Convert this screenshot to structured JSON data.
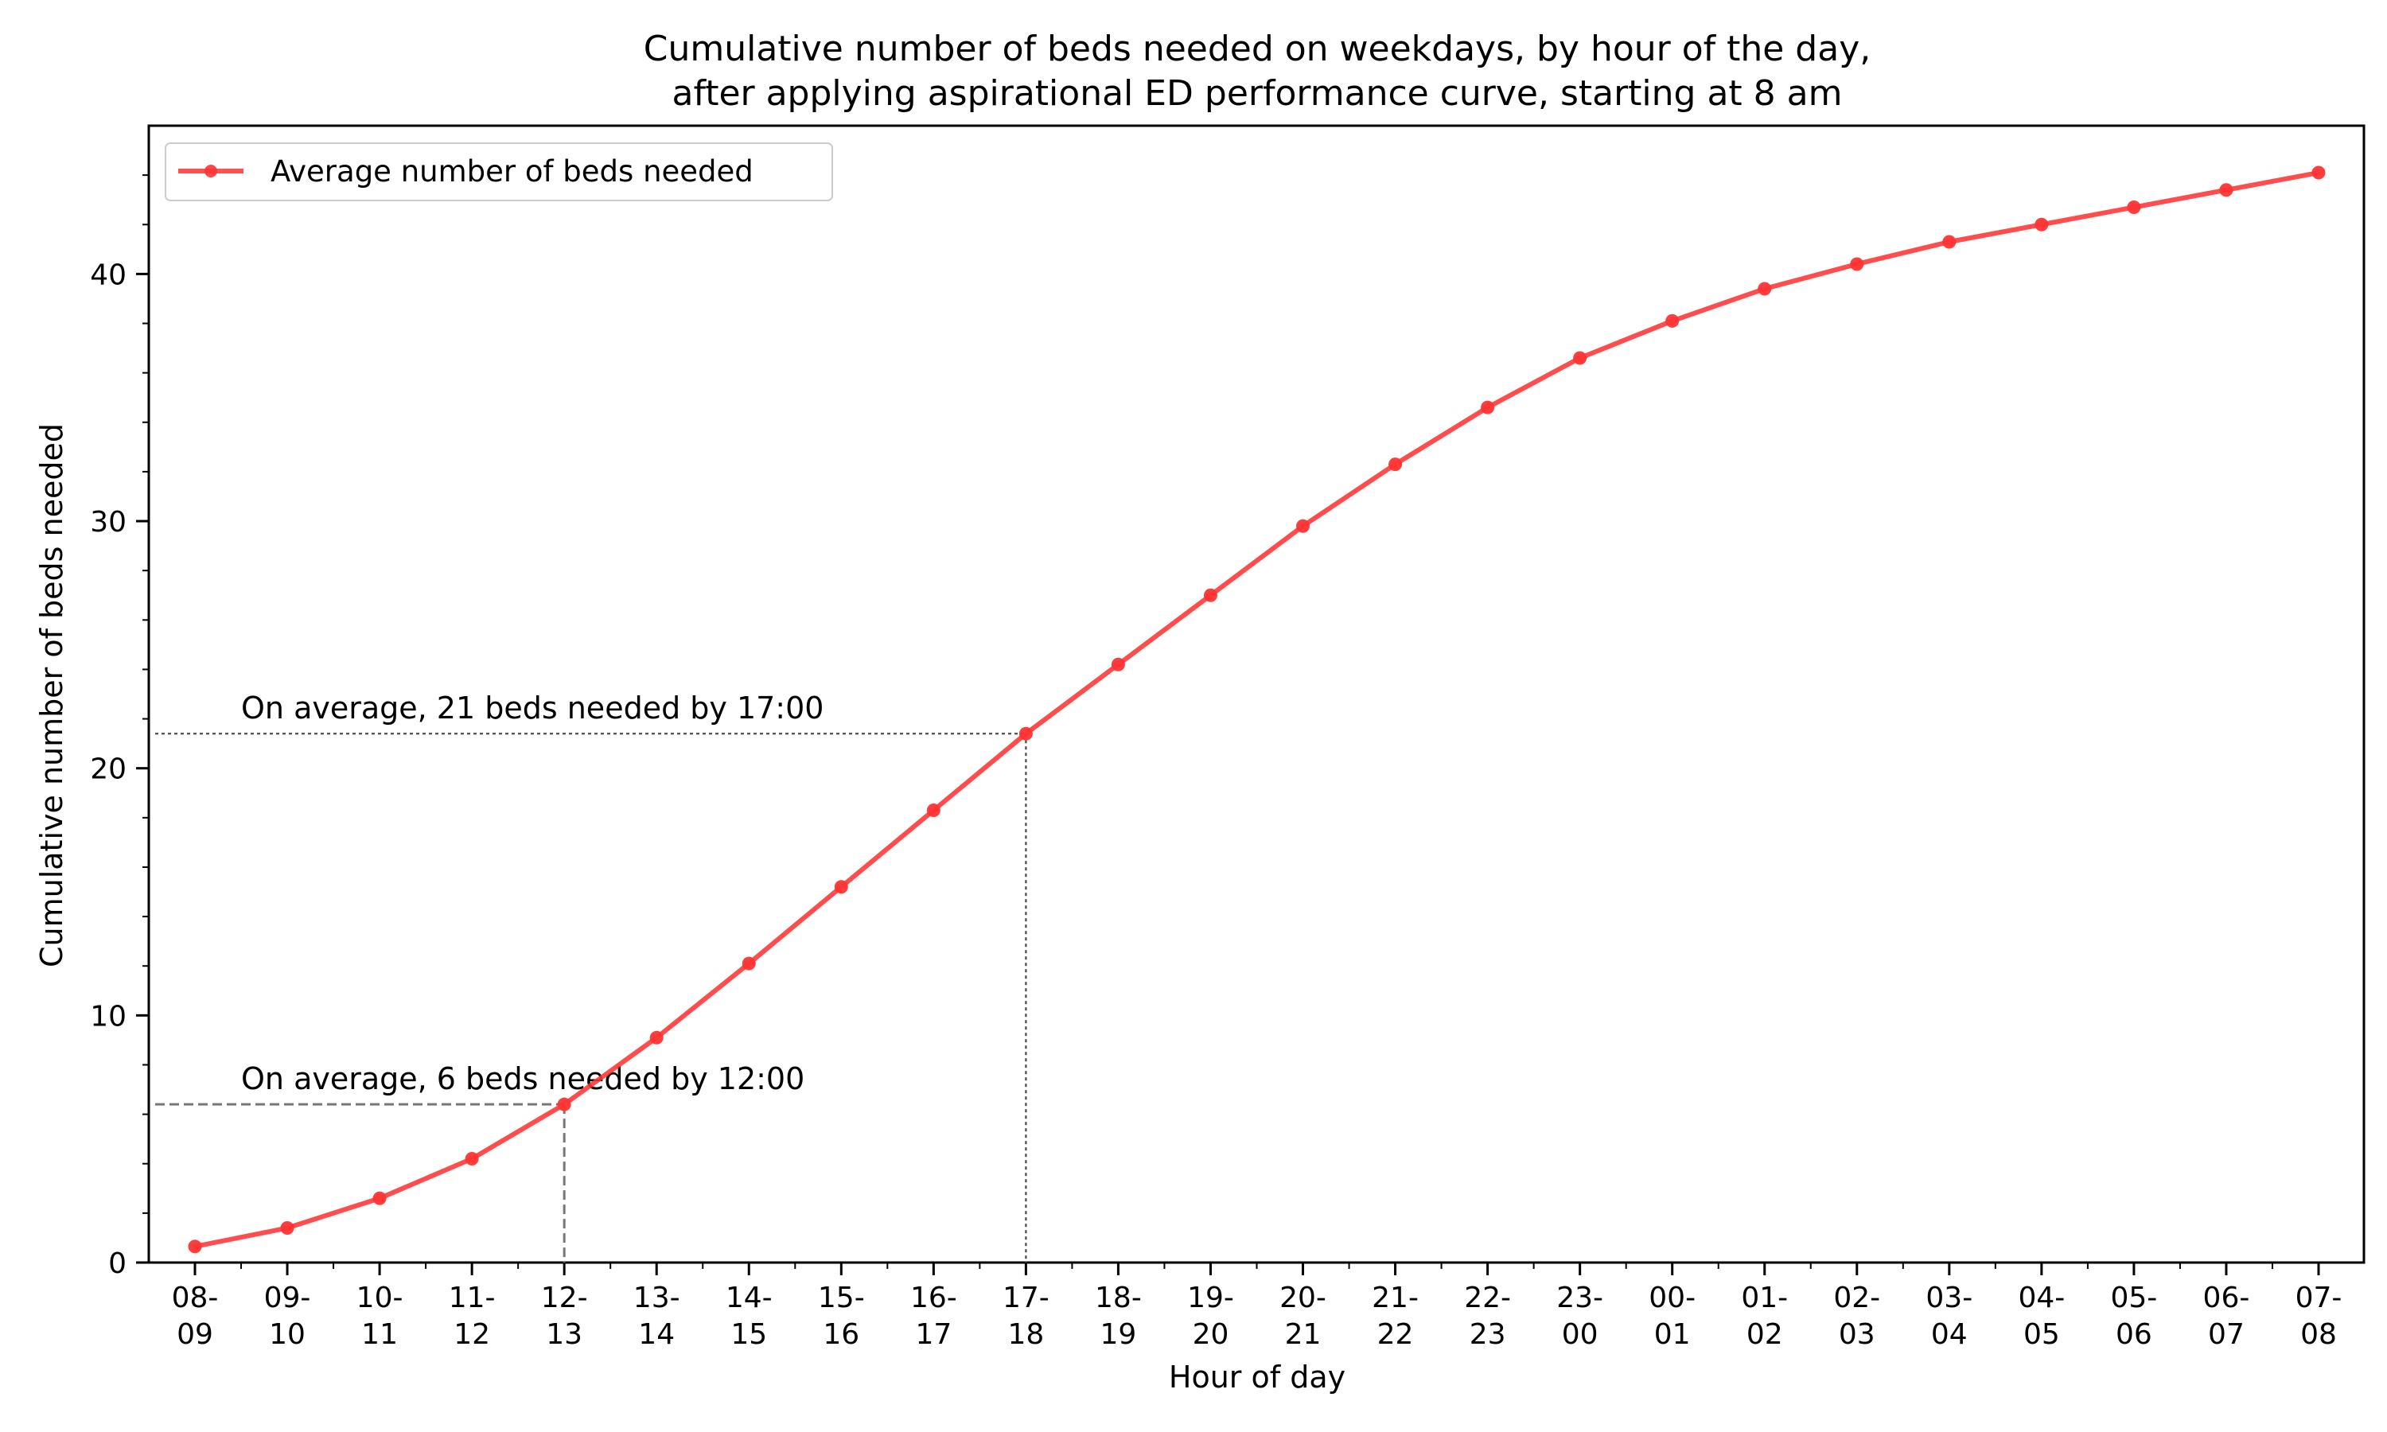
{
  "chart_data": {
    "type": "line",
    "title_lines": [
      "Cumulative number of beds needed on weekdays, by hour of the day,",
      "after applying aspirational ED performance curve, starting at 8 am"
    ],
    "xlabel": "Hour of day",
    "ylabel": "Cumulative number of beds needed",
    "ylim": [
      0,
      46
    ],
    "y_ticks": [
      0,
      10,
      20,
      30,
      40
    ],
    "y_tick_labels": [
      "0",
      "10",
      "20",
      "30",
      "40"
    ],
    "categories": [
      [
        "08-",
        "09"
      ],
      [
        "09-",
        "10"
      ],
      [
        "10-",
        "11"
      ],
      [
        "11-",
        "12"
      ],
      [
        "12-",
        "13"
      ],
      [
        "13-",
        "14"
      ],
      [
        "14-",
        "15"
      ],
      [
        "15-",
        "16"
      ],
      [
        "16-",
        "17"
      ],
      [
        "17-",
        "18"
      ],
      [
        "18-",
        "19"
      ],
      [
        "19-",
        "20"
      ],
      [
        "20-",
        "21"
      ],
      [
        "21-",
        "22"
      ],
      [
        "22-",
        "23"
      ],
      [
        "23-",
        "00"
      ],
      [
        "00-",
        "01"
      ],
      [
        "01-",
        "02"
      ],
      [
        "02-",
        "03"
      ],
      [
        "03-",
        "04"
      ],
      [
        "04-",
        "05"
      ],
      [
        "05-",
        "06"
      ],
      [
        "06-",
        "07"
      ],
      [
        "07-",
        "08"
      ]
    ],
    "series": [
      {
        "name": "Average number of beds needed",
        "color": "#ff3333",
        "values": [
          0.65,
          1.4,
          2.6,
          4.2,
          6.4,
          9.1,
          12.1,
          15.2,
          18.3,
          21.4,
          24.2,
          27.0,
          29.8,
          32.3,
          34.6,
          36.6,
          38.1,
          39.4,
          40.4,
          41.3,
          42.0,
          42.7,
          43.4,
          44.1
        ]
      }
    ],
    "annotations": [
      {
        "text": "On average, 6 beds needed by 12:00",
        "category_index": 4,
        "value": 6.4,
        "line_style": "dashed",
        "label_y": 7.4
      },
      {
        "text": "On average, 21 beds needed by 17:00",
        "category_index": 9,
        "value": 21.4,
        "line_style": "dotted",
        "label_y": 22.4
      }
    ],
    "legend": {
      "placement": "top-left"
    },
    "grid": false
  }
}
